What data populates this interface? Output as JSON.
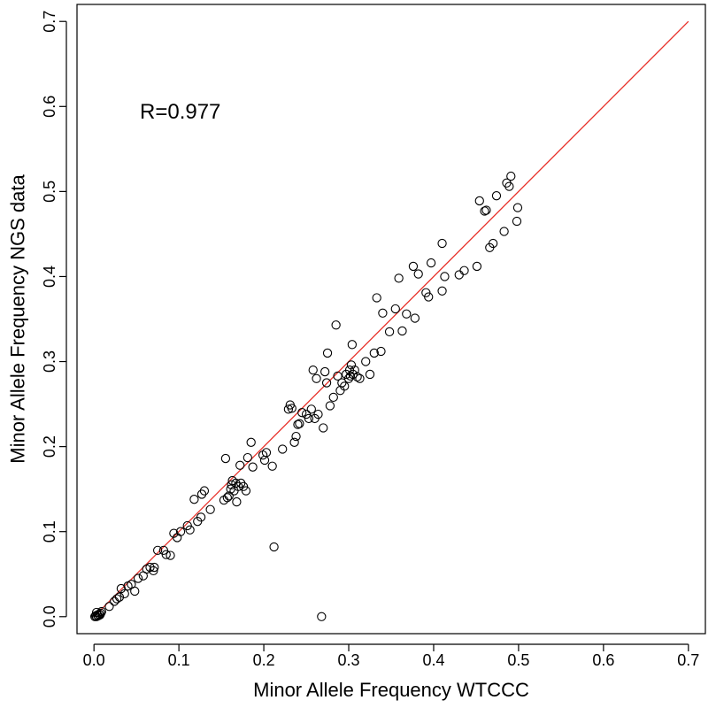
{
  "chart_data": {
    "type": "scatter",
    "xlabel": "Minor Allele Frequency WTCCC",
    "ylabel": "Minor Allele Frequency NGS data",
    "annotation": "R=0.977",
    "xlim": [
      -0.02,
      0.72
    ],
    "ylim": [
      -0.02,
      0.72
    ],
    "xticks": [
      0.0,
      0.1,
      0.2,
      0.3,
      0.4,
      0.5,
      0.6,
      0.7
    ],
    "yticks": [
      0.0,
      0.1,
      0.2,
      0.3,
      0.4,
      0.5,
      0.6,
      0.7
    ],
    "xtick_labels": [
      "0.0",
      "0.1",
      "0.2",
      "0.3",
      "0.4",
      "0.5",
      "0.6",
      "0.7"
    ],
    "ytick_labels": [
      "0.0",
      "0.1",
      "0.2",
      "0.3",
      "0.4",
      "0.5",
      "0.6",
      "0.7"
    ],
    "grid": false,
    "marker": "open-circle",
    "point_color": "#000000",
    "reference_line": {
      "from": [
        0.0,
        0.0
      ],
      "to": [
        0.7,
        0.7
      ],
      "color": "#e8312a"
    },
    "series": [
      {
        "points": [
          [
            0.001,
            0.0
          ],
          [
            0.002,
            0.001
          ],
          [
            0.003,
            0.0
          ],
          [
            0.004,
            0.002
          ],
          [
            0.005,
            0.001
          ],
          [
            0.006,
            0.003
          ],
          [
            0.007,
            0.002
          ],
          [
            0.008,
            0.004
          ],
          [
            0.003,
            0.005
          ],
          [
            0.009,
            0.006
          ],
          [
            0.018,
            0.012
          ],
          [
            0.024,
            0.018
          ],
          [
            0.027,
            0.021
          ],
          [
            0.03,
            0.023
          ],
          [
            0.032,
            0.033
          ],
          [
            0.036,
            0.027
          ],
          [
            0.04,
            0.036
          ],
          [
            0.044,
            0.038
          ],
          [
            0.048,
            0.03
          ],
          [
            0.052,
            0.045
          ],
          [
            0.058,
            0.048
          ],
          [
            0.062,
            0.056
          ],
          [
            0.066,
            0.058
          ],
          [
            0.07,
            0.054
          ],
          [
            0.071,
            0.058
          ],
          [
            0.075,
            0.078
          ],
          [
            0.082,
            0.078
          ],
          [
            0.085,
            0.073
          ],
          [
            0.09,
            0.072
          ],
          [
            0.094,
            0.098
          ],
          [
            0.098,
            0.093
          ],
          [
            0.102,
            0.1
          ],
          [
            0.11,
            0.107
          ],
          [
            0.113,
            0.102
          ],
          [
            0.118,
            0.138
          ],
          [
            0.122,
            0.112
          ],
          [
            0.126,
            0.117
          ],
          [
            0.127,
            0.144
          ],
          [
            0.13,
            0.148
          ],
          [
            0.137,
            0.126
          ],
          [
            0.153,
            0.137
          ],
          [
            0.155,
            0.186
          ],
          [
            0.157,
            0.14
          ],
          [
            0.159,
            0.142
          ],
          [
            0.161,
            0.15
          ],
          [
            0.162,
            0.155
          ],
          [
            0.163,
            0.16
          ],
          [
            0.165,
            0.148
          ],
          [
            0.167,
            0.157
          ],
          [
            0.168,
            0.135
          ],
          [
            0.17,
            0.153
          ],
          [
            0.172,
            0.178
          ],
          [
            0.173,
            0.157
          ],
          [
            0.176,
            0.153
          ],
          [
            0.179,
            0.148
          ],
          [
            0.181,
            0.187
          ],
          [
            0.185,
            0.205
          ],
          [
            0.187,
            0.176
          ],
          [
            0.199,
            0.19
          ],
          [
            0.201,
            0.184
          ],
          [
            0.203,
            0.193
          ],
          [
            0.21,
            0.177
          ],
          [
            0.212,
            0.082
          ],
          [
            0.222,
            0.197
          ],
          [
            0.229,
            0.244
          ],
          [
            0.231,
            0.249
          ],
          [
            0.233,
            0.245
          ],
          [
            0.236,
            0.205
          ],
          [
            0.238,
            0.212
          ],
          [
            0.24,
            0.226
          ],
          [
            0.242,
            0.227
          ],
          [
            0.245,
            0.24
          ],
          [
            0.25,
            0.238
          ],
          [
            0.253,
            0.233
          ],
          [
            0.256,
            0.244
          ],
          [
            0.258,
            0.29
          ],
          [
            0.26,
            0.233
          ],
          [
            0.262,
            0.28
          ],
          [
            0.264,
            0.238
          ],
          [
            0.268,
            0.0
          ],
          [
            0.27,
            0.222
          ],
          [
            0.272,
            0.288
          ],
          [
            0.274,
            0.275
          ],
          [
            0.275,
            0.31
          ],
          [
            0.278,
            0.248
          ],
          [
            0.282,
            0.258
          ],
          [
            0.285,
            0.343
          ],
          [
            0.287,
            0.283
          ],
          [
            0.29,
            0.266
          ],
          [
            0.292,
            0.275
          ],
          [
            0.295,
            0.271
          ],
          [
            0.297,
            0.285
          ],
          [
            0.3,
            0.28
          ],
          [
            0.301,
            0.29
          ],
          [
            0.302,
            0.283
          ],
          [
            0.303,
            0.296
          ],
          [
            0.304,
            0.32
          ],
          [
            0.305,
            0.285
          ],
          [
            0.307,
            0.29
          ],
          [
            0.31,
            0.282
          ],
          [
            0.313,
            0.28
          ],
          [
            0.32,
            0.3
          ],
          [
            0.325,
            0.285
          ],
          [
            0.33,
            0.31
          ],
          [
            0.333,
            0.375
          ],
          [
            0.338,
            0.312
          ],
          [
            0.34,
            0.357
          ],
          [
            0.348,
            0.335
          ],
          [
            0.355,
            0.362
          ],
          [
            0.359,
            0.398
          ],
          [
            0.363,
            0.336
          ],
          [
            0.368,
            0.356
          ],
          [
            0.376,
            0.412
          ],
          [
            0.378,
            0.351
          ],
          [
            0.382,
            0.403
          ],
          [
            0.391,
            0.381
          ],
          [
            0.394,
            0.376
          ],
          [
            0.397,
            0.416
          ],
          [
            0.41,
            0.383
          ],
          [
            0.41,
            0.439
          ],
          [
            0.413,
            0.4
          ],
          [
            0.43,
            0.402
          ],
          [
            0.436,
            0.407
          ],
          [
            0.451,
            0.412
          ],
          [
            0.454,
            0.489
          ],
          [
            0.46,
            0.477
          ],
          [
            0.462,
            0.478
          ],
          [
            0.466,
            0.434
          ],
          [
            0.47,
            0.439
          ],
          [
            0.474,
            0.495
          ],
          [
            0.483,
            0.453
          ],
          [
            0.486,
            0.51
          ],
          [
            0.489,
            0.506
          ],
          [
            0.491,
            0.518
          ],
          [
            0.498,
            0.465
          ],
          [
            0.499,
            0.481
          ]
        ]
      }
    ]
  }
}
